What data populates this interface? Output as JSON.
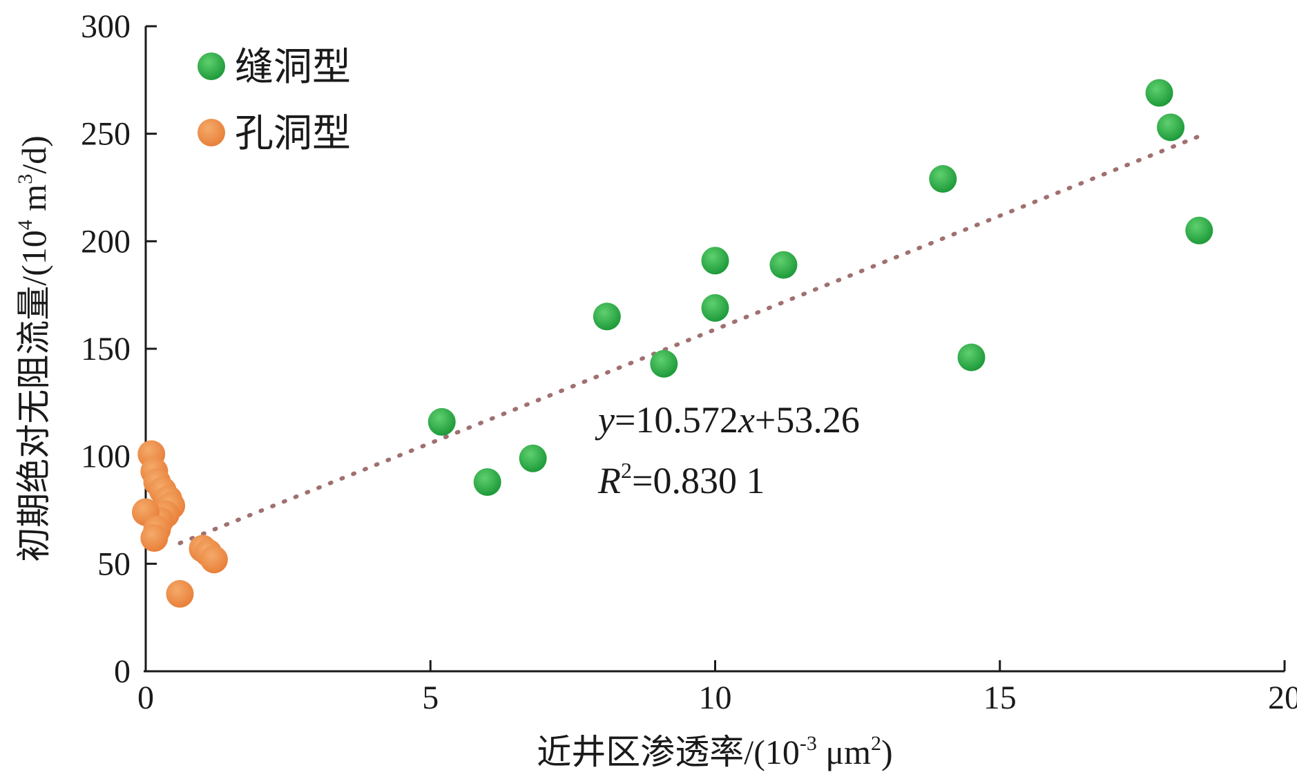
{
  "chart_data": {
    "type": "scatter",
    "title": "",
    "xlabel": "近井区渗透率/(10⁻³ μm²)",
    "ylabel": "初期绝对无阻流量/(10⁴ m³/d)",
    "xlim": [
      0,
      20
    ],
    "ylim": [
      0,
      300
    ],
    "x_ticks": [
      0,
      5,
      10,
      15,
      20
    ],
    "y_ticks": [
      0,
      50,
      100,
      150,
      200,
      250,
      300
    ],
    "grid": false,
    "legend_position": "top-left",
    "series": [
      {
        "name": "缝洞型",
        "color": "#1e9a3a",
        "points": [
          {
            "x": 5.2,
            "y": 116
          },
          {
            "x": 6.0,
            "y": 88
          },
          {
            "x": 6.8,
            "y": 99
          },
          {
            "x": 8.1,
            "y": 165
          },
          {
            "x": 9.1,
            "y": 143
          },
          {
            "x": 10.0,
            "y": 191
          },
          {
            "x": 10.0,
            "y": 169
          },
          {
            "x": 11.2,
            "y": 189
          },
          {
            "x": 14.0,
            "y": 229
          },
          {
            "x": 14.5,
            "y": 146
          },
          {
            "x": 17.8,
            "y": 269
          },
          {
            "x": 18.0,
            "y": 253
          },
          {
            "x": 18.5,
            "y": 205
          }
        ]
      },
      {
        "name": "孔洞型",
        "color": "#e8803a",
        "points": [
          {
            "x": 0.1,
            "y": 101
          },
          {
            "x": 0.15,
            "y": 93
          },
          {
            "x": 0.2,
            "y": 88
          },
          {
            "x": 0.3,
            "y": 84
          },
          {
            "x": 0.4,
            "y": 80
          },
          {
            "x": 0.45,
            "y": 77
          },
          {
            "x": 0.35,
            "y": 73
          },
          {
            "x": 0.25,
            "y": 70
          },
          {
            "x": 0.0,
            "y": 74
          },
          {
            "x": 0.2,
            "y": 66
          },
          {
            "x": 0.15,
            "y": 62
          },
          {
            "x": 1.0,
            "y": 57
          },
          {
            "x": 1.1,
            "y": 55
          },
          {
            "x": 1.2,
            "y": 52
          },
          {
            "x": 0.6,
            "y": 36
          }
        ]
      }
    ],
    "trendline": {
      "slope": 10.572,
      "intercept": 53.26,
      "x_range": [
        0.6,
        18.5
      ],
      "color": "#a07070",
      "style": "dotted"
    },
    "annotations": {
      "equation_y": "y",
      "equation_mid": "=10.572",
      "equation_x": "x",
      "equation_end": "+53.26",
      "r2_letter": "R",
      "r2_exp": "2",
      "r2_value": "=0.830 1"
    },
    "axis_label_parts": {
      "x_main": "近井区渗透率/(10",
      "x_exp": "-3",
      "x_mid": " μm",
      "x_exp2": "2",
      "x_end": ")",
      "y_main": "初期绝对无阻流量/(10",
      "y_exp": "4",
      "y_mid": " m",
      "y_exp2": "3",
      "y_end": "/d)"
    }
  }
}
